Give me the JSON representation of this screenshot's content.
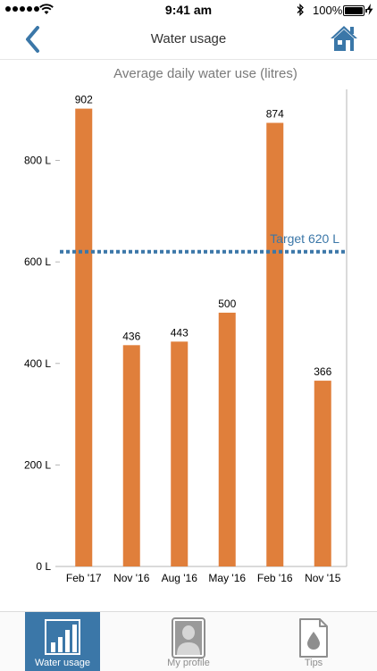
{
  "status_bar": {
    "time": "9:41 am",
    "battery_percent": "100%",
    "icons": [
      "signal-dots-icon",
      "wifi-icon",
      "bluetooth-icon",
      "battery-icon",
      "charging-bolt-icon"
    ]
  },
  "nav": {
    "title": "Water usage",
    "back_icon": "chevron-left-icon",
    "home_icon": "home-icon"
  },
  "colors": {
    "bar": "#e07f3b",
    "target_line": "#3b77a8",
    "accent": "#3b77a8",
    "tab_active_bg": "#3b77a8",
    "tab_inactive_text": "#8e8e8e"
  },
  "chart_data": {
    "type": "bar",
    "title": "Average daily water use (litres)",
    "categories": [
      "Feb '17",
      "Nov '16",
      "Aug '16",
      "May '16",
      "Feb '16",
      "Nov '15"
    ],
    "values": [
      902,
      436,
      443,
      500,
      874,
      366
    ],
    "data_labels": [
      "902",
      "436",
      "443",
      "500",
      "874",
      "366"
    ],
    "y_ticks": [
      0,
      200,
      400,
      600,
      800
    ],
    "y_tick_labels": [
      "0 L",
      "200 L",
      "400 L",
      "600 L",
      "800 L"
    ],
    "ylim": [
      0,
      940
    ],
    "target": {
      "value": 620,
      "label": "Target 620 L",
      "style": "dotted"
    },
    "grid": false,
    "legend": "none"
  },
  "tabs": [
    {
      "label": "Water usage",
      "icon": "bar-chart-icon",
      "active": true
    },
    {
      "label": "My profile",
      "icon": "profile-person-icon",
      "active": false
    },
    {
      "label": "Tips",
      "icon": "water-drop-document-icon",
      "active": false
    }
  ]
}
